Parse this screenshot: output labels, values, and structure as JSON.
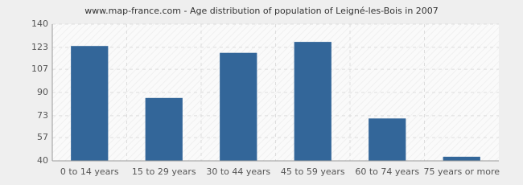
{
  "chart_data": {
    "type": "bar",
    "title": "www.map-france.com - Age distribution of population of Leigné-les-Bois in 2007",
    "categories": [
      "0 to 14 years",
      "15 to 29 years",
      "30 to 44 years",
      "45 to 59 years",
      "60 to 74 years",
      "75 years or more"
    ],
    "values": [
      124,
      86,
      119,
      127,
      71,
      43
    ],
    "color": "#336699",
    "ylim": [
      40,
      140
    ],
    "yticks": [
      40,
      57,
      73,
      90,
      107,
      123,
      140
    ],
    "grid": true
  }
}
